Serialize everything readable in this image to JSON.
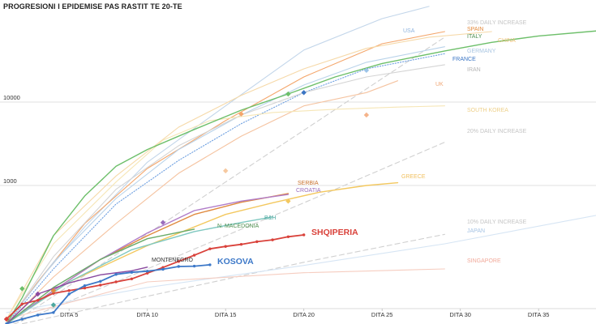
{
  "chart_data": {
    "type": "line",
    "title": "PROGRESIONI I EPIDEMISE PAS RASTIT TE 20-TE",
    "xlabel": "",
    "ylabel": "",
    "y_scale": "log",
    "xlim": [
      1,
      39
    ],
    "ylim": [
      20,
      100000
    ],
    "x_ticks": [
      {
        "value": 5,
        "label": "DITA 5"
      },
      {
        "value": 10,
        "label": "DITA 10"
      },
      {
        "value": 15,
        "label": "DITA 15"
      },
      {
        "value": 20,
        "label": "DITA 20"
      },
      {
        "value": 25,
        "label": "DITA 25"
      },
      {
        "value": 30,
        "label": "DITA 30"
      },
      {
        "value": 35,
        "label": "DITA 35"
      }
    ],
    "y_ticks": [
      {
        "value": 1000,
        "label": "1000"
      },
      {
        "value": 10000,
        "label": "10000"
      }
    ],
    "grid": "horizontal",
    "series": [
      {
        "name": "33% DAILY INCREASE",
        "color": "#d0d0d0",
        "dashed": true,
        "label_color": "#c4c4c4",
        "x": [
          1,
          15,
          29
        ],
        "y": [
          20,
          1100,
          60000
        ]
      },
      {
        "name": "20% DAILY INCREASE",
        "color": "#d0d0d0",
        "dashed": true,
        "label_color": "#c4c4c4",
        "x": [
          1,
          10,
          20,
          29
        ],
        "y": [
          20,
          100,
          620,
          3300
        ]
      },
      {
        "name": "10% DAILY INCREASE",
        "color": "#d0d0d0",
        "dashed": true,
        "label_color": "#c4c4c4",
        "x": [
          1,
          10,
          20,
          29
        ],
        "y": [
          20,
          47,
          120,
          260
        ]
      },
      {
        "name": "USA",
        "color": "#c3d6ea",
        "label_color": "#8fb4de",
        "x": [
          1,
          3,
          6,
          10,
          15,
          20,
          25,
          28
        ],
        "y": [
          22,
          70,
          320,
          1900,
          9000,
          42000,
          100000,
          140000
        ]
      },
      {
        "name": "SPAIN",
        "color": "#f4a66b",
        "label_color": "#e38a3c",
        "x": [
          1,
          3,
          6,
          10,
          15,
          20,
          25,
          29
        ],
        "y": [
          22,
          70,
          350,
          1600,
          6000,
          20000,
          50000,
          70000
        ]
      },
      {
        "name": "ITALY",
        "color": "#6dbf6a",
        "label_color": "#4f8f4f",
        "x": [
          1,
          2,
          4,
          6,
          8,
          10,
          13,
          16,
          19,
          22,
          25,
          29,
          32,
          35,
          39
        ],
        "y": [
          22,
          45,
          250,
          750,
          1700,
          2700,
          4700,
          8000,
          12500,
          20000,
          29000,
          41000,
          52000,
          62000,
          72000
        ]
      },
      {
        "name": "CHINA",
        "color": "#f6d9a8",
        "label_color": "#f0c27a",
        "x": [
          1,
          4,
          8,
          12,
          16,
          20,
          24,
          28,
          32
        ],
        "y": [
          25,
          250,
          1300,
          5000,
          12000,
          25000,
          44000,
          60000,
          70000
        ]
      },
      {
        "name": "GERMANY",
        "color": "#b9d3ea",
        "label_color": "#aac6e2",
        "x": [
          1,
          4,
          8,
          12,
          16,
          20,
          24,
          29
        ],
        "y": [
          22,
          120,
          700,
          2700,
          7000,
          16000,
          30000,
          46000
        ]
      },
      {
        "name": "FRANCE",
        "color": "#6d9fe0",
        "dotted": true,
        "label_color": "#3b75c4",
        "x": [
          1,
          4,
          8,
          12,
          16,
          20,
          24,
          29
        ],
        "y": [
          22,
          100,
          600,
          2000,
          5500,
          13000,
          25000,
          38000
        ]
      },
      {
        "name": "IRAN",
        "color": "#d4d4d4",
        "label_color": "#b6b6b6",
        "x": [
          1,
          4,
          8,
          12,
          16,
          20,
          24,
          29
        ],
        "y": [
          22,
          140,
          900,
          3000,
          7000,
          13000,
          20000,
          28000
        ]
      },
      {
        "name": "UK",
        "color": "#f5c3a0",
        "label_color": "#f0a877",
        "x": [
          1,
          4,
          8,
          12,
          16,
          20,
          24,
          26
        ],
        "y": [
          22,
          80,
          350,
          1400,
          3900,
          9000,
          13000,
          18000
        ]
      },
      {
        "name": "SOUTH KOREA",
        "color": "#f6e6b6",
        "label_color": "#eed08a",
        "x": [
          1,
          4,
          8,
          11,
          14,
          18,
          22,
          26,
          29
        ],
        "y": [
          25,
          200,
          1100,
          3500,
          6000,
          7500,
          8200,
          8700,
          9000
        ]
      },
      {
        "name": "GREECE",
        "color": "#f3c85f",
        "label_color": "#f0c060",
        "x": [
          1,
          5,
          10,
          15,
          18,
          21,
          24,
          26
        ],
        "y": [
          22,
          70,
          190,
          450,
          620,
          830,
          1000,
          1080
        ]
      },
      {
        "name": "SERBIA",
        "color": "#e08a3e",
        "label_color": "#c8702a",
        "x": [
          1,
          4,
          7,
          10,
          13,
          16,
          19
        ],
        "y": [
          22,
          55,
          130,
          250,
          450,
          630,
          800
        ]
      },
      {
        "name": "CROATIA",
        "color": "#b07cc8",
        "label_color": "#9a6dbd",
        "x": [
          1,
          4,
          7,
          10,
          13,
          16,
          19
        ],
        "y": [
          22,
          55,
          130,
          270,
          500,
          650,
          780
        ]
      },
      {
        "name": "B&H",
        "color": "#7fc8c0",
        "label_color": "#4ba89f",
        "x": [
          1,
          5,
          9,
          13,
          16,
          18
        ],
        "y": [
          22,
          70,
          170,
          280,
          360,
          420
        ]
      },
      {
        "name": "N. MACEDONIA",
        "color": "#6aab6a",
        "label_color": "#4f8f4f",
        "x": [
          1,
          4,
          7,
          10,
          13
        ],
        "y": [
          22,
          60,
          130,
          230,
          300
        ]
      },
      {
        "name": "SHQIPERIA",
        "color": "#d9413a",
        "label_color": "#d9413a",
        "x": [
          1,
          2,
          3,
          4,
          5,
          6,
          7,
          8,
          9,
          10,
          11,
          12,
          13,
          14,
          15,
          16,
          17,
          18,
          19,
          20
        ],
        "y": [
          25,
          38,
          42,
          51,
          55,
          59,
          64,
          70,
          76,
          89,
          104,
          123,
          146,
          174,
          186,
          197,
          212,
          223,
          243,
          256
        ]
      },
      {
        "name": "MONTENEGRO",
        "color": "#8a4aa0",
        "label_color": "#333333",
        "x": [
          1,
          3,
          5,
          7,
          9,
          10
        ],
        "y": [
          22,
          50,
          68,
          85,
          95,
          105
        ]
      },
      {
        "name": "KOSOVA",
        "color": "#3c78c8",
        "label_color": "#3c78c8",
        "x": [
          1,
          2,
          3,
          4,
          5,
          6,
          7,
          8,
          9,
          10,
          11,
          12,
          13,
          14
        ],
        "y": [
          22,
          25,
          28,
          30,
          50,
          63,
          71,
          86,
          91,
          94,
          99,
          107,
          108,
          112
        ]
      },
      {
        "name": "JAPAN",
        "color": "#d6e5f4",
        "label_color": "#a5c3e4",
        "x": [
          1,
          10,
          20,
          29,
          39
        ],
        "y": [
          30,
          60,
          110,
          200,
          450
        ]
      },
      {
        "name": "SINGAPORE",
        "color": "#f6cdc0",
        "label_color": "#f1a99a",
        "x": [
          1,
          10,
          20,
          29
        ],
        "y": [
          25,
          70,
          90,
          100
        ]
      }
    ],
    "markers": [
      {
        "series": "ITALY",
        "x": 19,
        "y": 12500,
        "color": "#6dbf6a"
      },
      {
        "series": "SPAIN",
        "x": 16,
        "y": 7200,
        "color": "#f4a66b"
      },
      {
        "series": "FRANCE",
        "x": 20,
        "y": 13000,
        "color": "#3b75c4"
      },
      {
        "series": "USA",
        "x": 24,
        "y": 24000,
        "color": "#9cc4e8"
      },
      {
        "series": "UK",
        "x": 24,
        "y": 7000,
        "color": "#f5b38a"
      },
      {
        "series": "CHINA",
        "x": 15,
        "y": 1500,
        "color": "#f6c9a0"
      },
      {
        "series": "GREECE",
        "x": 19,
        "y": 650,
        "color": "#f3c85f"
      },
      {
        "series": "CROATIA",
        "x": 11,
        "y": 360,
        "color": "#9a6dbd"
      },
      {
        "series": "N. MACEDONIA",
        "x": 2,
        "y": 58,
        "color": "#6dbf6a"
      },
      {
        "series": "MONTENEGRO",
        "x": 3,
        "y": 50,
        "color": "#8a4aa0"
      },
      {
        "series": "SERBIA",
        "x": 4,
        "y": 55,
        "color": "#e08a3e"
      },
      {
        "series": "B&H",
        "x": 4,
        "y": 37,
        "color": "#4ba89f"
      },
      {
        "series": "SHQIPERIA",
        "x": 1,
        "y": 25,
        "color": "#d9413a"
      }
    ]
  }
}
